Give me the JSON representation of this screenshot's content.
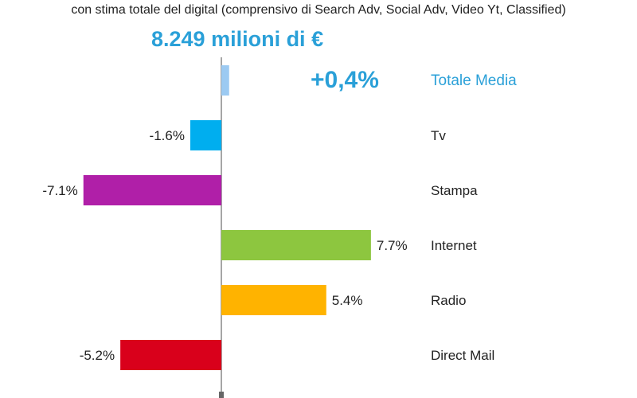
{
  "header": {
    "subtitle": "con stima totale del digital (comprensivo di Search Adv, Social Adv, Video Yt, Classified)",
    "total": "8.249 milioni di €",
    "total_change": "+0,4%"
  },
  "colors": {
    "accent": "#2aa0d8",
    "axis": "#888888"
  },
  "chart_data": {
    "type": "bar",
    "orientation": "horizontal",
    "categories": [
      "Totale Media",
      "Tv",
      "Stampa",
      "Internet",
      "Radio",
      "Direct Mail"
    ],
    "values": [
      0.4,
      -1.6,
      -7.1,
      7.7,
      5.4,
      -5.2
    ],
    "data_labels": [
      "",
      "-1.6%",
      "-7.1%",
      "7.7%",
      "5.4%",
      "-5.2%"
    ],
    "colors": [
      "#9ccaf2",
      "#00aeef",
      "#b01fa8",
      "#8dc63f",
      "#ffb300",
      "#d9001b"
    ],
    "category_label_colors": [
      "#2aa0d8",
      "#222222",
      "#222222",
      "#222222",
      "#222222",
      "#222222"
    ],
    "xlabel": "",
    "ylabel": "",
    "grid": false
  }
}
